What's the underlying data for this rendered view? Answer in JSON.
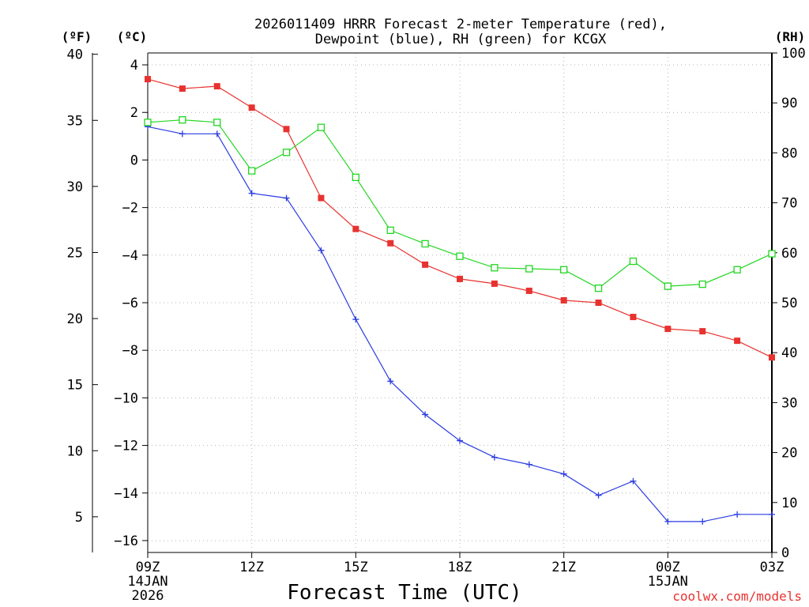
{
  "chart_data": {
    "type": "line",
    "title": "2026011409 HRRR Forecast 2-meter Temperature (red),",
    "subtitle": "Dewpoint (blue), RH (green) for KCGX",
    "xlabel": "Forecast Time (UTC)",
    "left_outer_unit": "(ºF)",
    "left_inner_unit": "(ºC)",
    "right_unit": "(RH)",
    "source": "coolwx.com/models",
    "x_ticks": [
      {
        "hour": 0,
        "lines": [
          "09Z",
          "14JAN",
          "2026"
        ]
      },
      {
        "hour": 3,
        "lines": [
          "12Z"
        ]
      },
      {
        "hour": 6,
        "lines": [
          "15Z"
        ]
      },
      {
        "hour": 9,
        "lines": [
          "18Z"
        ]
      },
      {
        "hour": 12,
        "lines": [
          "21Z"
        ]
      },
      {
        "hour": 15,
        "lines": [
          "00Z",
          "15JAN"
        ]
      },
      {
        "hour": 18,
        "lines": [
          "03Z"
        ]
      }
    ],
    "x_range": [
      0,
      18
    ],
    "celsius_axis": {
      "range": [
        -16.5,
        4.5
      ],
      "ticks": [
        4,
        2,
        0,
        -2,
        -4,
        -6,
        -8,
        -10,
        -12,
        -14,
        -16
      ]
    },
    "fahrenheit_axis": {
      "ticks": [
        40,
        35,
        30,
        25,
        20,
        15,
        10,
        5
      ]
    },
    "rh_axis": {
      "range": [
        0,
        100
      ],
      "ticks": [
        100,
        90,
        80,
        70,
        60,
        50,
        40,
        30,
        20,
        10,
        0
      ]
    },
    "series": [
      {
        "name": "Temperature",
        "unit": "C",
        "color": "#e8322f",
        "marker": "filled-square",
        "values": [
          3.4,
          3.0,
          3.1,
          2.2,
          1.3,
          -1.6,
          -2.9,
          -3.5,
          -4.4,
          -5.0,
          -5.2,
          -5.5,
          -5.9,
          -6.0,
          -6.6,
          -7.1,
          -7.2,
          -7.6,
          -8.3
        ]
      },
      {
        "name": "Dewpoint",
        "unit": "C",
        "color": "#2a3be0",
        "marker": "plus",
        "values": [
          1.4,
          1.1,
          1.1,
          -1.4,
          -1.6,
          -3.8,
          -6.7,
          -9.3,
          -10.7,
          -11.8,
          -12.5,
          -12.8,
          -13.2,
          -14.1,
          -13.5,
          -15.2,
          -15.2,
          -14.9,
          -14.9
        ]
      },
      {
        "name": "RH",
        "unit": "%",
        "color": "#22d622",
        "marker": "open-square",
        "values": [
          86.1,
          86.6,
          86.1,
          76.4,
          80.1,
          85.1,
          75.1,
          64.5,
          61.8,
          59.3,
          57.0,
          56.8,
          56.6,
          52.9,
          58.3,
          53.3,
          53.7,
          56.6,
          59.8
        ]
      }
    ]
  }
}
